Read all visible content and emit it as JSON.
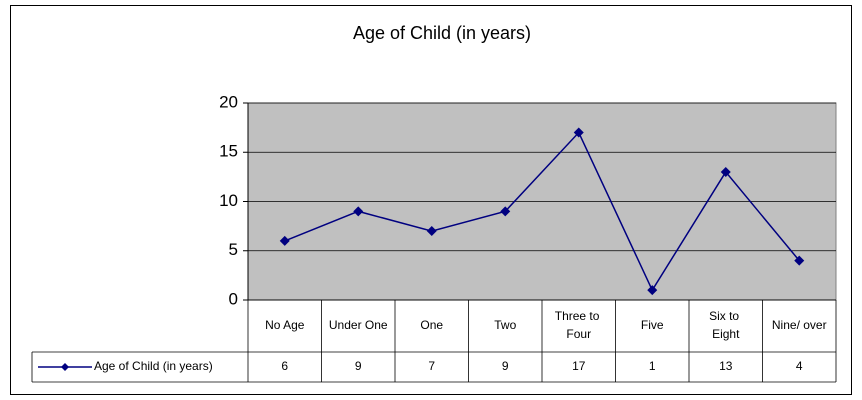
{
  "chart_data": {
    "type": "line",
    "title": "Age of Child (in years)",
    "categories": [
      "No Age",
      "Under One",
      "One",
      "Two",
      "Three to Four",
      "Five",
      "Six to Eight",
      "Nine/ over"
    ],
    "series": [
      {
        "name": "Age of Child (in years)",
        "color": "#000080",
        "values": [
          6,
          9,
          7,
          9,
          17,
          1,
          13,
          4
        ]
      }
    ],
    "ylim": [
      0,
      20
    ],
    "yticks": [
      0,
      5,
      10,
      15,
      20
    ],
    "grid": true,
    "plot_background": "#c0c0c0"
  }
}
